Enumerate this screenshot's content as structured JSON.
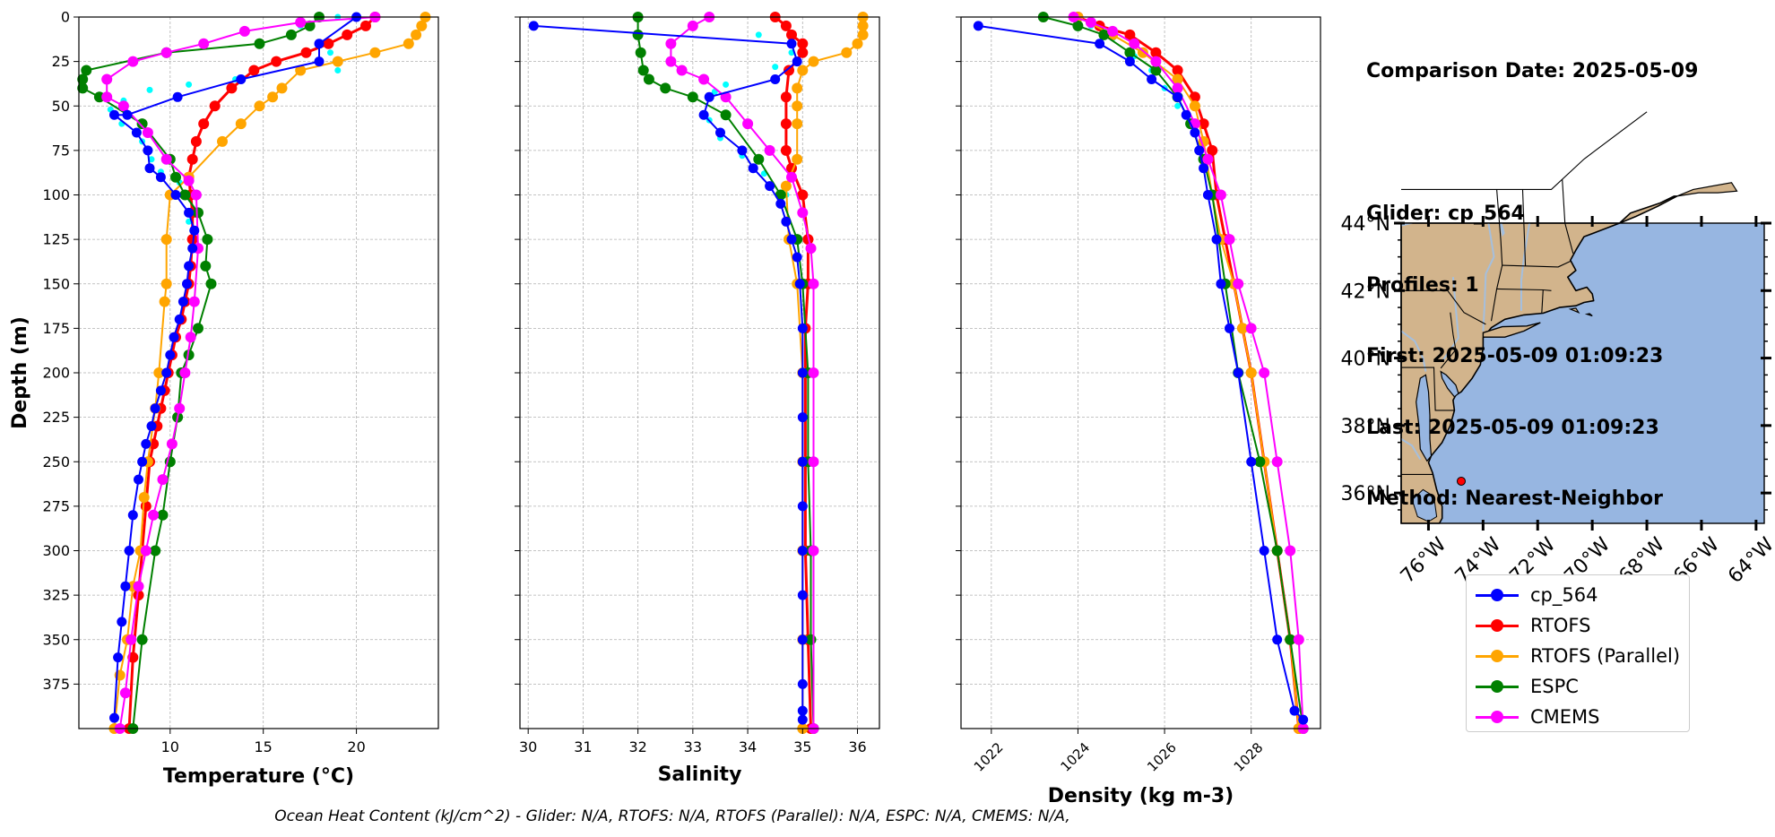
{
  "info": {
    "comparison_date": "Comparison Date: 2025-05-09",
    "glider": "Glider: cp_564",
    "profiles": "Profiles: 1",
    "first": "First: 2025-05-09 01:09:23",
    "last": "Last: 2025-05-09 01:09:23",
    "method": "Method: Nearest-Neighbor"
  },
  "footer": "Ocean Heat Content (kJ/cm^2) - Glider: N/A,  RTOFS: N/A,  RTOFS (Parallel): N/A,  ESPC: N/A,  CMEMS: N/A,",
  "colors": {
    "glider": "#0000ff",
    "glider_raw": "#00ffff",
    "rtofs": "#ff0000",
    "rtofs_parallel": "#ffa500",
    "espc": "#008000",
    "cmems": "#ff00ff",
    "land": "#d2b48c",
    "ocean": "#97b6e1",
    "river": "#a5bfdd",
    "station": "#ff0000"
  },
  "legend": [
    {
      "label": "cp_564",
      "color": "#0000ff"
    },
    {
      "label": "RTOFS",
      "color": "#ff0000"
    },
    {
      "label": "RTOFS (Parallel)",
      "color": "#ffa500"
    },
    {
      "label": "ESPC",
      "color": "#008000"
    },
    {
      "label": "CMEMS",
      "color": "#ff00ff"
    }
  ],
  "chart_data": [
    {
      "type": "line",
      "xlabel": "Temperature (°C)",
      "ylabel": "Depth (m)",
      "xlim": [
        5.1,
        24.4
      ],
      "xticks": [
        10,
        15,
        20
      ],
      "ylim": [
        400,
        0
      ],
      "yticks": [
        0,
        25,
        50,
        75,
        100,
        125,
        150,
        175,
        200,
        225,
        250,
        275,
        300,
        325,
        350,
        375
      ],
      "grid": true,
      "series": [
        {
          "name": "cp_564",
          "x": [
            20.0,
            18.0,
            18.0,
            13.8,
            10.4,
            7.7,
            7.0,
            8.2,
            8.8,
            8.9,
            9.5,
            10.3,
            11.0,
            11.3,
            11.2,
            11.0,
            10.9,
            10.7,
            10.5,
            10.2,
            10.0,
            9.8,
            9.5,
            9.2,
            9.0,
            8.7,
            8.5,
            8.3,
            8.0,
            7.8,
            7.6,
            7.4,
            7.2,
            7.0
          ],
          "y": [
            0,
            15,
            25,
            35,
            45,
            55,
            55,
            65,
            75,
            85,
            90,
            100,
            110,
            120,
            130,
            140,
            150,
            160,
            170,
            180,
            190,
            200,
            210,
            220,
            230,
            240,
            250,
            260,
            280,
            300,
            320,
            340,
            360,
            394
          ]
        },
        {
          "name": "cp_564 (raw)",
          "x": [
            19.0,
            17.0,
            18.6,
            19.0,
            13.5,
            11.0,
            8.9,
            7.5,
            6.8,
            7.4,
            8.5,
            9.0,
            9.5,
            10.5,
            11.0,
            11.2
          ],
          "y": [
            0,
            5,
            20,
            30,
            35,
            38,
            41,
            47,
            52,
            60,
            70,
            80,
            87,
            93,
            115,
            120
          ]
        },
        {
          "name": "RTOFS",
          "x": [
            21.0,
            20.5,
            19.5,
            18.5,
            17.3,
            15.7,
            14.5,
            13.3,
            12.4,
            11.8,
            11.4,
            11.2,
            11.0,
            11.1,
            11.2,
            11.2,
            11.1,
            11.0,
            10.8,
            10.6,
            10.3,
            10.1,
            9.9,
            9.7,
            9.5,
            9.3,
            9.1,
            8.9,
            8.7,
            8.5,
            8.3,
            8.0,
            7.8
          ],
          "y": [
            0,
            5,
            10,
            15,
            20,
            25,
            30,
            40,
            50,
            60,
            70,
            80,
            90,
            100,
            110,
            125,
            140,
            150,
            160,
            170,
            180,
            190,
            200,
            210,
            220,
            230,
            240,
            250,
            275,
            300,
            325,
            360,
            400
          ]
        },
        {
          "name": "RTOFS (Parallel)",
          "x": [
            23.7,
            23.5,
            23.2,
            22.8,
            21.0,
            19.0,
            17.0,
            16.0,
            15.5,
            14.8,
            13.8,
            12.8,
            11.0,
            10.0,
            9.8,
            9.8,
            9.7,
            9.4,
            9.2,
            8.8,
            8.6,
            8.4,
            8.0,
            7.7,
            7.3,
            7.0
          ],
          "y": [
            0,
            5,
            10,
            15,
            20,
            25,
            30,
            40,
            45,
            50,
            60,
            70,
            90,
            100,
            125,
            150,
            160,
            200,
            220,
            250,
            270,
            300,
            320,
            350,
            370,
            400
          ]
        },
        {
          "name": "ESPC",
          "x": [
            18.0,
            17.5,
            16.5,
            14.8,
            9.8,
            5.5,
            5.3,
            5.3,
            6.2,
            8.5,
            10.0,
            10.3,
            10.8,
            11.5,
            12.0,
            11.9,
            12.2,
            11.5,
            11.0,
            10.6,
            10.4,
            10.0,
            9.6,
            9.2,
            8.5,
            8.0
          ],
          "y": [
            0,
            5,
            10,
            15,
            20,
            30,
            35,
            40,
            45,
            60,
            80,
            90,
            100,
            110,
            125,
            140,
            150,
            175,
            190,
            200,
            225,
            250,
            280,
            300,
            350,
            400
          ]
        },
        {
          "name": "CMEMS",
          "x": [
            21.0,
            17.0,
            14.0,
            11.8,
            9.8,
            8.0,
            6.6,
            6.6,
            7.5,
            8.8,
            9.8,
            11.0,
            11.4,
            11.5,
            11.3,
            11.1,
            10.8,
            10.5,
            10.1,
            9.6,
            9.1,
            8.7,
            8.3,
            7.9,
            7.6,
            7.3
          ],
          "y": [
            0,
            3,
            8,
            15,
            20,
            25,
            35,
            45,
            50,
            65,
            80,
            92,
            100,
            130,
            160,
            180,
            200,
            220,
            240,
            260,
            280,
            300,
            320,
            350,
            380,
            400
          ]
        }
      ]
    },
    {
      "type": "line",
      "xlabel": "Salinity",
      "xlim": [
        29.85,
        36.4
      ],
      "xticks": [
        30,
        31,
        32,
        33,
        34,
        35,
        36
      ],
      "ylim": [
        400,
        0
      ],
      "grid": true,
      "series": [
        {
          "name": "cp_564",
          "x": [
            30.1,
            34.8,
            34.9,
            34.5,
            33.3,
            33.2,
            33.5,
            33.9,
            34.1,
            34.4,
            34.6,
            34.7,
            34.8,
            34.9,
            34.95,
            35.0,
            35.0,
            35.0,
            35.0,
            35.0,
            35.0,
            35.0,
            35.0,
            35.0,
            35.0,
            35.0
          ],
          "y": [
            5,
            15,
            25,
            35,
            45,
            55,
            65,
            75,
            85,
            95,
            105,
            115,
            125,
            135,
            150,
            175,
            200,
            225,
            250,
            275,
            300,
            325,
            350,
            375,
            390,
            395
          ]
        },
        {
          "name": "cp_564 (raw)",
          "x": [
            34.2,
            34.8,
            34.5,
            33.6,
            33.4,
            33.3,
            33.5,
            33.9,
            34.3,
            34.7
          ],
          "y": [
            10,
            20,
            28,
            38,
            42,
            58,
            68,
            78,
            88,
            100
          ]
        },
        {
          "name": "RTOFS",
          "x": [
            34.5,
            34.7,
            34.8,
            35.0,
            35.0,
            34.75,
            34.7,
            34.7,
            34.7,
            34.8,
            35.0,
            35.1,
            35.1,
            35.05,
            35.05,
            35.05,
            35.05,
            35.1,
            35.15
          ],
          "y": [
            0,
            5,
            10,
            15,
            20,
            30,
            45,
            60,
            75,
            85,
            100,
            125,
            150,
            175,
            200,
            250,
            300,
            350,
            400
          ]
        },
        {
          "name": "RTOFS (Parallel)",
          "x": [
            36.1,
            36.1,
            36.1,
            36.0,
            35.8,
            35.2,
            35.0,
            34.9,
            34.9,
            34.9,
            34.9,
            34.7,
            34.75,
            34.9,
            35.0,
            35.0,
            35.0,
            35.0,
            35.0
          ],
          "y": [
            0,
            5,
            10,
            15,
            20,
            25,
            30,
            40,
            50,
            60,
            80,
            95,
            125,
            150,
            200,
            250,
            300,
            350,
            400
          ]
        },
        {
          "name": "ESPC",
          "x": [
            32.0,
            32.0,
            32.05,
            32.1,
            32.2,
            32.5,
            33.0,
            33.6,
            34.2,
            34.6,
            34.9,
            35.0,
            35.1,
            35.1,
            35.15,
            35.15,
            35.2
          ],
          "y": [
            0,
            10,
            20,
            30,
            35,
            40,
            45,
            55,
            80,
            100,
            125,
            150,
            200,
            250,
            300,
            350,
            400
          ]
        },
        {
          "name": "CMEMS",
          "x": [
            33.3,
            33.0,
            32.6,
            32.6,
            32.8,
            33.2,
            33.6,
            34.0,
            34.4,
            34.8,
            35.0,
            35.15,
            35.2,
            35.2,
            35.2,
            35.2,
            35.2
          ],
          "y": [
            0,
            5,
            15,
            25,
            30,
            35,
            45,
            60,
            75,
            90,
            110,
            130,
            150,
            200,
            250,
            300,
            400
          ]
        }
      ]
    },
    {
      "type": "line",
      "xlabel": "Density (kg m-3)",
      "xlim": [
        1021.3,
        1029.6
      ],
      "xticks": [
        1022,
        1024,
        1026,
        1028
      ],
      "ylim": [
        400,
        0
      ],
      "grid": true,
      "series": [
        {
          "name": "cp_564",
          "x": [
            1021.7,
            1024.5,
            1025.2,
            1025.7,
            1026.3,
            1026.5,
            1026.7,
            1026.8,
            1026.9,
            1027.0,
            1027.2,
            1027.3,
            1027.5,
            1027.7,
            1028.0,
            1028.3,
            1028.6,
            1029.0,
            1029.2
          ],
          "y": [
            5,
            15,
            25,
            35,
            45,
            55,
            65,
            75,
            85,
            100,
            125,
            150,
            175,
            200,
            250,
            300,
            350,
            390,
            395
          ]
        },
        {
          "name": "cp_564 (raw)",
          "x": [
            1024.3,
            1024.8,
            1025.3,
            1025.7,
            1026.0,
            1026.3
          ],
          "y": [
            5,
            12,
            22,
            30,
            40,
            50
          ]
        },
        {
          "name": "RTOFS",
          "x": [
            1024.0,
            1024.5,
            1025.2,
            1025.8,
            1026.3,
            1026.7,
            1026.9,
            1027.1,
            1027.2,
            1027.4,
            1027.6,
            1027.8,
            1028.0,
            1028.3,
            1028.6,
            1028.9,
            1029.1
          ],
          "y": [
            0,
            5,
            10,
            20,
            30,
            45,
            60,
            75,
            100,
            125,
            150,
            175,
            200,
            250,
            300,
            350,
            400
          ]
        },
        {
          "name": "RTOFS (Parallel)",
          "x": [
            1024.0,
            1024.8,
            1025.5,
            1026.3,
            1026.7,
            1026.9,
            1027.1,
            1027.3,
            1027.6,
            1027.8,
            1028.0,
            1028.3,
            1028.6,
            1028.9,
            1029.1
          ],
          "y": [
            0,
            10,
            20,
            35,
            50,
            70,
            100,
            125,
            150,
            175,
            200,
            250,
            300,
            350,
            400
          ]
        },
        {
          "name": "ESPC",
          "x": [
            1023.2,
            1024.0,
            1024.6,
            1025.2,
            1025.8,
            1026.3,
            1026.6,
            1026.9,
            1027.1,
            1027.4,
            1027.7,
            1028.2,
            1028.6,
            1028.9,
            1029.2
          ],
          "y": [
            0,
            5,
            10,
            20,
            30,
            45,
            60,
            80,
            100,
            150,
            200,
            250,
            300,
            350,
            400
          ]
        },
        {
          "name": "CMEMS",
          "x": [
            1023.9,
            1024.3,
            1024.8,
            1025.3,
            1025.8,
            1026.3,
            1026.7,
            1027.0,
            1027.3,
            1027.5,
            1027.7,
            1028.0,
            1028.3,
            1028.6,
            1028.9,
            1029.1,
            1029.2
          ],
          "y": [
            0,
            3,
            8,
            15,
            25,
            40,
            60,
            80,
            100,
            125,
            150,
            175,
            200,
            250,
            300,
            350,
            400
          ]
        }
      ]
    },
    {
      "type": "map",
      "lon_range": [
        -77.0,
        -63.7
      ],
      "lat_range": [
        35.1,
        44.0
      ],
      "lat_ticks": [
        "44°N",
        "42°N",
        "40°N",
        "38°N",
        "36°N"
      ],
      "lat_values": [
        44,
        42,
        40,
        38,
        36
      ],
      "lon_ticks": [
        "76°W",
        "74°W",
        "72°W",
        "70°W",
        "68°W",
        "66°W",
        "64°W"
      ],
      "lon_values": [
        -76,
        -74,
        -72,
        -70,
        -68,
        -66,
        -64
      ],
      "station": {
        "lon": -74.8,
        "lat": 36.35
      }
    }
  ]
}
